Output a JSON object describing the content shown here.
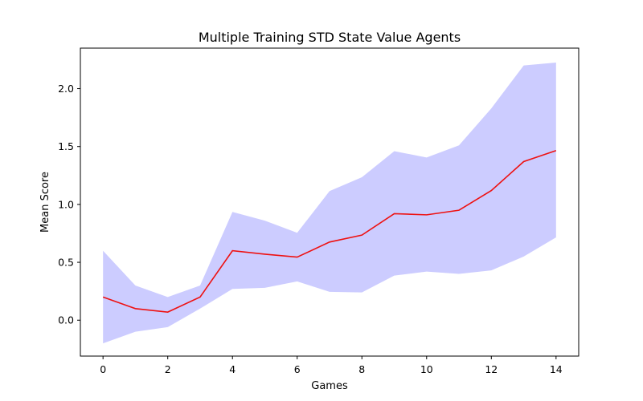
{
  "chart_data": {
    "type": "line",
    "title": "Multiple Training STD State Value Agents",
    "xlabel": "Games",
    "ylabel": "Mean Score",
    "xlim": [
      -0.7,
      14.7
    ],
    "ylim": [
      -0.31,
      2.35
    ],
    "x_ticks": [
      0,
      2,
      4,
      6,
      8,
      10,
      12,
      14
    ],
    "x_tick_labels": [
      "0",
      "2",
      "4",
      "6",
      "8",
      "10",
      "12",
      "14"
    ],
    "y_ticks": [
      0.0,
      0.5,
      1.0,
      1.5,
      2.0
    ],
    "y_tick_labels": [
      "0.0",
      "0.5",
      "1.0",
      "1.5",
      "2.0"
    ],
    "grid": false,
    "x": [
      0,
      1,
      2,
      3,
      4,
      5,
      6,
      7,
      8,
      9,
      10,
      11,
      12,
      13,
      14
    ],
    "series": [
      {
        "values": [
          0.2,
          0.1,
          0.07,
          0.2,
          0.6,
          0.57,
          0.545,
          0.675,
          0.735,
          0.92,
          0.91,
          0.95,
          1.12,
          1.37,
          1.465
        ],
        "color": "#ee1111"
      }
    ],
    "band": {
      "lower": [
        -0.2,
        -0.1,
        -0.06,
        0.1,
        0.27,
        0.28,
        0.335,
        0.245,
        0.24,
        0.385,
        0.42,
        0.4,
        0.43,
        0.55,
        0.715
      ],
      "upper": [
        0.6,
        0.3,
        0.2,
        0.3,
        0.935,
        0.86,
        0.755,
        1.115,
        1.235,
        1.46,
        1.405,
        1.51,
        1.83,
        2.2,
        2.225
      ],
      "color": "#ccccff"
    }
  }
}
